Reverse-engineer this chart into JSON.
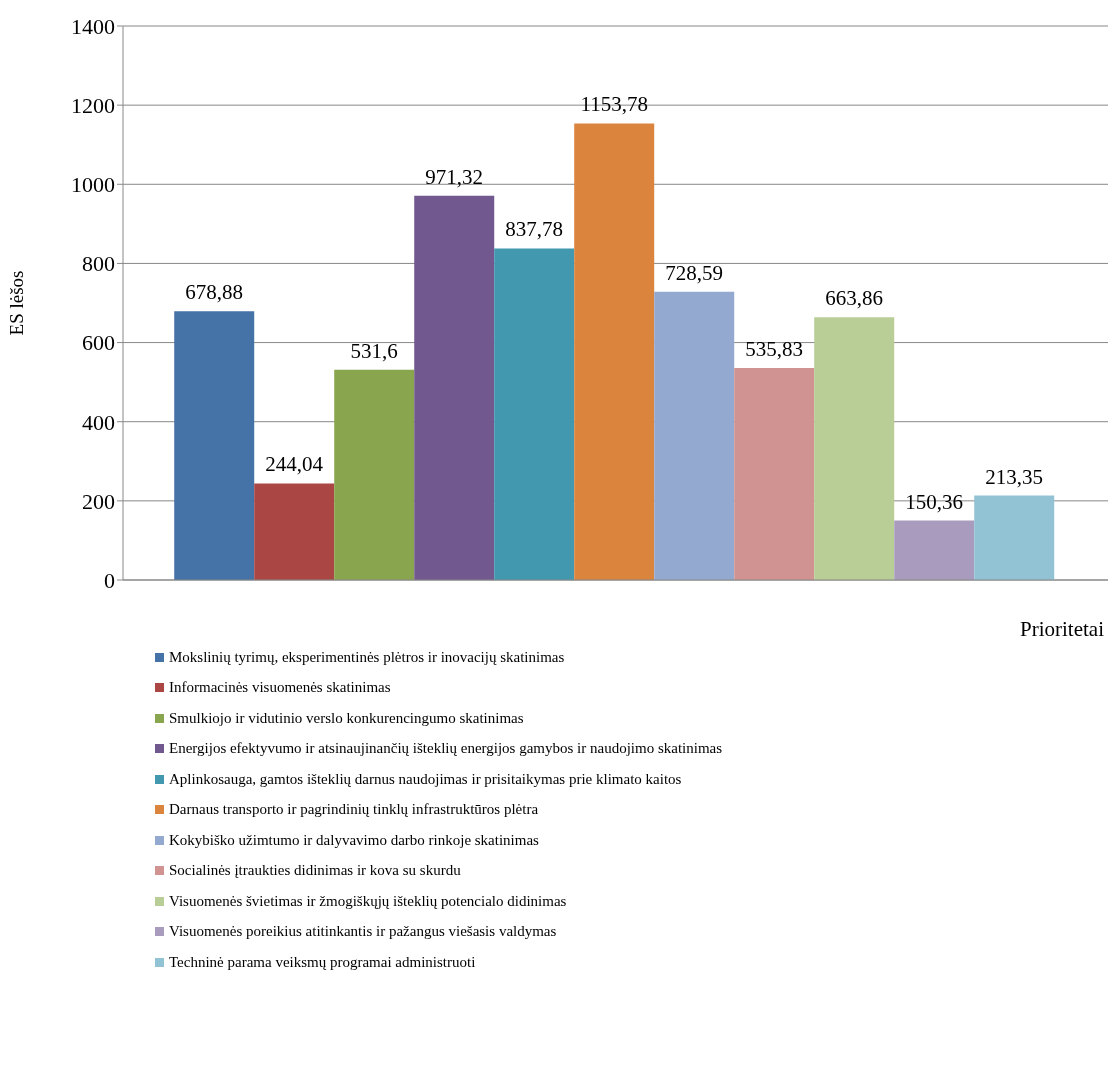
{
  "chart_data": {
    "type": "bar",
    "categories": [
      null
    ],
    "xlabel": "Prioritetai",
    "ylabel": "ES lėšos",
    "ylim": [
      0,
      1400
    ],
    "yticks": [
      0,
      200,
      400,
      600,
      800,
      1000,
      1200,
      1400
    ],
    "grid": "y",
    "legend": "bottom",
    "series": [
      {
        "name": "Mokslinių tyrimų, eksperimentinės plėtros ir inovacijų skatinimas",
        "color": "#4572a7",
        "values": [
          678.88
        ],
        "value_labels": [
          "678,88"
        ]
      },
      {
        "name": "Informacinės visuomenės skatinimas",
        "color": "#aa4643",
        "values": [
          244.04
        ],
        "value_labels": [
          "244,04"
        ]
      },
      {
        "name": "Smulkiojo ir vidutinio verslo konkurencingumo skatinimas",
        "color": "#89a54e",
        "values": [
          531.6
        ],
        "value_labels": [
          "531,6"
        ]
      },
      {
        "name": "Energijos efektyvumo ir atsinaujinančių išteklių energijos gamybos ir naudojimo skatinimas",
        "color": "#71588f",
        "values": [
          971.32
        ],
        "value_labels": [
          "971,32"
        ]
      },
      {
        "name": "Aplinkosauga, gamtos išteklių darnus naudojimas ir prisitaikymas prie klimato kaitos",
        "color": "#4198af",
        "values": [
          837.78
        ],
        "value_labels": [
          "837,78"
        ]
      },
      {
        "name": "Darnaus transporto ir pagrindinių tinklų infrastruktūros plėtra",
        "color": "#db843d",
        "values": [
          1153.78
        ],
        "value_labels": [
          "1153,78"
        ]
      },
      {
        "name": "Kokybiško užimtumo ir dalyvavimo darbo rinkoje skatinimas",
        "color": "#93a9cf",
        "values": [
          728.59
        ],
        "value_labels": [
          "728,59"
        ]
      },
      {
        "name": "Socialinės įtraukties didinimas ir kova su skurdu",
        "color": "#d19392",
        "values": [
          535.83
        ],
        "value_labels": [
          "535,83"
        ]
      },
      {
        "name": "Visuomenės švietimas ir žmogiškųjų išteklių potencialo didinimas",
        "color": "#b9cd96",
        "values": [
          663.86
        ],
        "value_labels": [
          "663,86"
        ]
      },
      {
        "name": "Visuomenės poreikius atitinkantis ir pažangus viešasis valdymas",
        "color": "#a99bbd",
        "values": [
          150.36
        ],
        "value_labels": [
          "150,36"
        ]
      },
      {
        "name": "Techninė parama veiksmų programai administruoti",
        "color": "#92c3d5",
        "values": [
          213.35
        ],
        "value_labels": [
          "213,35"
        ]
      }
    ]
  }
}
